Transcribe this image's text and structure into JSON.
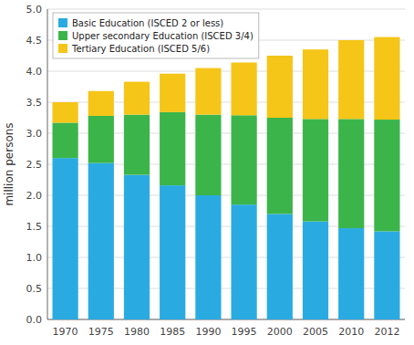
{
  "chart_data": {
    "type": "bar",
    "stacked": true,
    "categories": [
      "1970",
      "1975",
      "1980",
      "1985",
      "1990",
      "1995",
      "2000",
      "2005",
      "2010",
      "2012"
    ],
    "series": [
      {
        "name": "Basic Education (ISCED 2 or less)",
        "color": "#29ABE2",
        "values": [
          2.6,
          2.52,
          2.33,
          2.16,
          2.0,
          1.85,
          1.7,
          1.58,
          1.47,
          1.42
        ]
      },
      {
        "name": "Upper secondary Education (ISCED 3/4)",
        "color": "#3BB54A",
        "values": [
          0.57,
          0.76,
          0.97,
          1.18,
          1.3,
          1.44,
          1.55,
          1.65,
          1.76,
          1.8
        ]
      },
      {
        "name": "Tertiary Education (ISCED 5/6)",
        "color": "#F5C518",
        "values": [
          0.33,
          0.4,
          0.53,
          0.62,
          0.75,
          0.85,
          1.0,
          1.12,
          1.27,
          1.33
        ]
      }
    ],
    "ylabel": "million persons",
    "ylim": [
      0,
      5.0
    ],
    "yticks": [
      {
        "value": 0,
        "label": "0.0"
      },
      0.5,
      {
        "value": 1,
        "label": "1.0"
      },
      1.5,
      {
        "value": 2,
        "label": "2.0"
      },
      2.5,
      {
        "value": 3,
        "label": "3.0"
      },
      3.5,
      {
        "value": 4,
        "label": "4.0"
      },
      4.5,
      {
        "value": 5,
        "label": "5.0"
      }
    ],
    "grid": true,
    "legend": "upper left"
  }
}
